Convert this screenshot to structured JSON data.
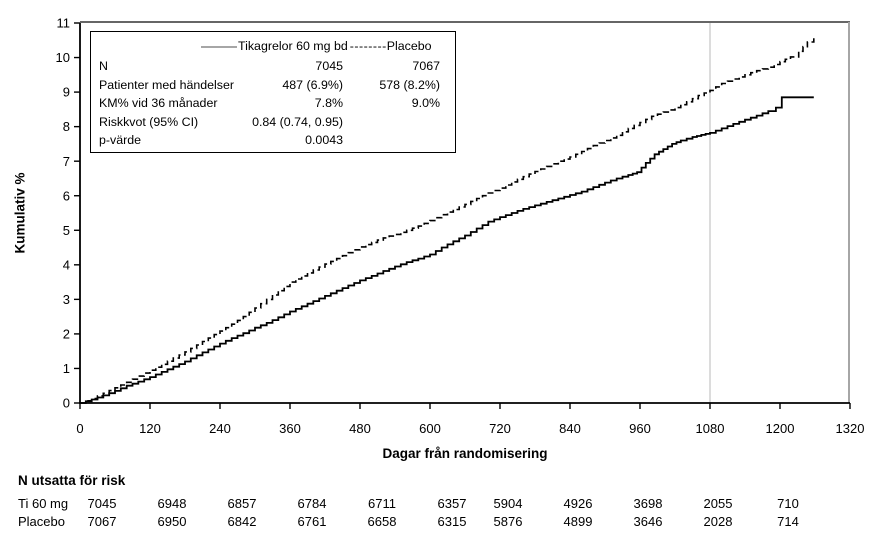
{
  "figure": {
    "background": "#ffffff"
  },
  "legend": {
    "series1_label": "Tikagrelor 60 mg bd",
    "dash_swatch": "--------",
    "series2_label": "Placebo",
    "rows": [
      {
        "label": "N",
        "col1": "7045",
        "col2": "7067"
      },
      {
        "label": "Patienter med händelser",
        "col1": "487 (6.9%)",
        "col2": "578 (8.2%)"
      },
      {
        "label": "KM% vid 36 månader",
        "col1": "7.8%",
        "col2": "9.0%"
      },
      {
        "label": "Riskkvot (95% CI)",
        "col1": "0.84 (0.74, 0.95)",
        "col2": ""
      },
      {
        "label": "p-värde",
        "col1": "0.0043",
        "col2": ""
      }
    ]
  },
  "chart_data": {
    "type": "line",
    "subtype": "kaplan-meier-step",
    "title": "",
    "xlabel": "Dagar från randomisering",
    "ylabel": "Kumulativ %",
    "xlim": [
      0,
      1320
    ],
    "ylim": [
      0,
      11
    ],
    "xticks": [
      0,
      120,
      240,
      360,
      480,
      600,
      720,
      840,
      960,
      1080,
      1200,
      1320
    ],
    "yticks": [
      0,
      1,
      2,
      3,
      4,
      5,
      6,
      7,
      8,
      9,
      10,
      11
    ],
    "grid": false,
    "legend_position": "top-left-box",
    "reference_line_x": 1080,
    "reference_line_color": "#dcdcdc",
    "axis_color": "#000000",
    "border_top_color": "#333333",
    "border_right_color": "#a6a6a6",
    "series": [
      {
        "name": "Tikagrelor 60 mg bd",
        "style": "solid",
        "color": "#000000",
        "points": [
          [
            0,
            0
          ],
          [
            20,
            0.1
          ],
          [
            40,
            0.22
          ],
          [
            60,
            0.35
          ],
          [
            80,
            0.5
          ],
          [
            100,
            0.62
          ],
          [
            120,
            0.75
          ],
          [
            140,
            0.9
          ],
          [
            160,
            1.05
          ],
          [
            180,
            1.2
          ],
          [
            200,
            1.38
          ],
          [
            220,
            1.55
          ],
          [
            240,
            1.72
          ],
          [
            260,
            1.88
          ],
          [
            280,
            2.02
          ],
          [
            300,
            2.18
          ],
          [
            320,
            2.32
          ],
          [
            340,
            2.48
          ],
          [
            360,
            2.65
          ],
          [
            380,
            2.8
          ],
          [
            400,
            2.95
          ],
          [
            420,
            3.1
          ],
          [
            440,
            3.25
          ],
          [
            460,
            3.4
          ],
          [
            480,
            3.55
          ],
          [
            500,
            3.68
          ],
          [
            520,
            3.82
          ],
          [
            540,
            3.95
          ],
          [
            560,
            4.08
          ],
          [
            580,
            4.18
          ],
          [
            600,
            4.3
          ],
          [
            620,
            4.5
          ],
          [
            640,
            4.68
          ],
          [
            660,
            4.85
          ],
          [
            680,
            5.05
          ],
          [
            700,
            5.25
          ],
          [
            720,
            5.38
          ],
          [
            740,
            5.5
          ],
          [
            760,
            5.62
          ],
          [
            780,
            5.72
          ],
          [
            800,
            5.82
          ],
          [
            820,
            5.92
          ],
          [
            840,
            6.02
          ],
          [
            860,
            6.12
          ],
          [
            880,
            6.25
          ],
          [
            900,
            6.38
          ],
          [
            920,
            6.5
          ],
          [
            940,
            6.6
          ],
          [
            955,
            6.68
          ],
          [
            970,
            6.95
          ],
          [
            985,
            7.2
          ],
          [
            1000,
            7.35
          ],
          [
            1015,
            7.5
          ],
          [
            1030,
            7.6
          ],
          [
            1050,
            7.7
          ],
          [
            1065,
            7.76
          ],
          [
            1080,
            7.82
          ],
          [
            1100,
            7.95
          ],
          [
            1120,
            8.08
          ],
          [
            1140,
            8.2
          ],
          [
            1160,
            8.32
          ],
          [
            1180,
            8.45
          ],
          [
            1193,
            8.55
          ],
          [
            1203,
            8.85
          ],
          [
            1258,
            8.85
          ]
        ]
      },
      {
        "name": "Placebo",
        "style": "dashed",
        "color": "#000000",
        "points": [
          [
            0,
            0
          ],
          [
            20,
            0.13
          ],
          [
            40,
            0.28
          ],
          [
            60,
            0.44
          ],
          [
            80,
            0.6
          ],
          [
            100,
            0.78
          ],
          [
            120,
            0.95
          ],
          [
            140,
            1.12
          ],
          [
            160,
            1.3
          ],
          [
            180,
            1.48
          ],
          [
            200,
            1.68
          ],
          [
            220,
            1.88
          ],
          [
            240,
            2.08
          ],
          [
            260,
            2.28
          ],
          [
            280,
            2.5
          ],
          [
            300,
            2.75
          ],
          [
            320,
            3.0
          ],
          [
            340,
            3.25
          ],
          [
            360,
            3.5
          ],
          [
            380,
            3.68
          ],
          [
            400,
            3.85
          ],
          [
            420,
            4.02
          ],
          [
            440,
            4.18
          ],
          [
            460,
            4.35
          ],
          [
            480,
            4.52
          ],
          [
            500,
            4.65
          ],
          [
            520,
            4.78
          ],
          [
            540,
            4.88
          ],
          [
            560,
            5.0
          ],
          [
            580,
            5.12
          ],
          [
            600,
            5.28
          ],
          [
            620,
            5.45
          ],
          [
            640,
            5.6
          ],
          [
            660,
            5.75
          ],
          [
            680,
            5.92
          ],
          [
            700,
            6.08
          ],
          [
            720,
            6.22
          ],
          [
            740,
            6.4
          ],
          [
            760,
            6.55
          ],
          [
            780,
            6.7
          ],
          [
            800,
            6.85
          ],
          [
            820,
            7.0
          ],
          [
            840,
            7.12
          ],
          [
            860,
            7.28
          ],
          [
            880,
            7.45
          ],
          [
            900,
            7.6
          ],
          [
            920,
            7.75
          ],
          [
            940,
            7.95
          ],
          [
            960,
            8.12
          ],
          [
            980,
            8.3
          ],
          [
            1000,
            8.42
          ],
          [
            1020,
            8.55
          ],
          [
            1040,
            8.72
          ],
          [
            1060,
            8.9
          ],
          [
            1080,
            9.05
          ],
          [
            1100,
            9.25
          ],
          [
            1120,
            9.38
          ],
          [
            1140,
            9.5
          ],
          [
            1160,
            9.62
          ],
          [
            1180,
            9.72
          ],
          [
            1200,
            9.88
          ],
          [
            1218,
            10.02
          ],
          [
            1232,
            10.18
          ],
          [
            1247,
            10.45
          ],
          [
            1258,
            10.6
          ]
        ]
      }
    ],
    "km_36_months": {
      "tikagrelor": 7.8,
      "placebo": 9.0
    },
    "risk_table": {
      "title": "N utsatta för risk",
      "days": [
        0,
        120,
        240,
        360,
        480,
        600,
        720,
        840,
        960,
        1080,
        1200
      ],
      "rows": [
        {
          "label": "Ti 60 mg",
          "values": [
            7045,
            6948,
            6857,
            6784,
            6711,
            6357,
            5904,
            4926,
            3698,
            2055,
            710
          ]
        },
        {
          "label": "Placebo",
          "values": [
            7067,
            6950,
            6842,
            6761,
            6658,
            6315,
            5876,
            4899,
            3646,
            2028,
            714
          ]
        }
      ]
    }
  }
}
